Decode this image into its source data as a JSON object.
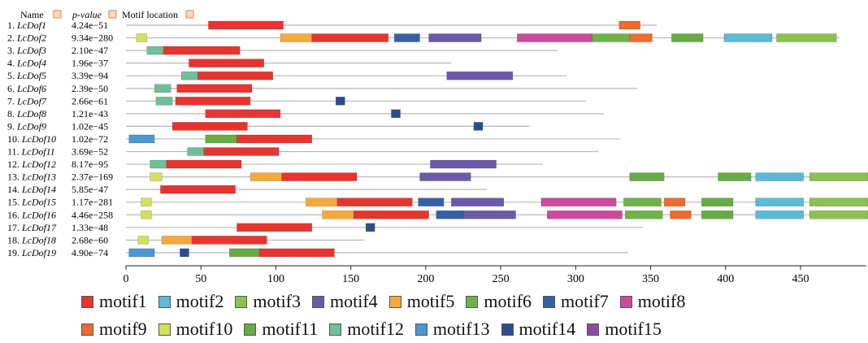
{
  "chart_data": {
    "type": "motif_map",
    "headers": {
      "name": "Name",
      "pvalue": "p-value",
      "location": "Motif location"
    },
    "xlim": [
      0,
      495
    ],
    "xticks": [
      0,
      50,
      100,
      150,
      200,
      250,
      300,
      350,
      400,
      450
    ],
    "motif_colors": {
      "motif1": "#e8342f",
      "motif2": "#5bbad6",
      "motif3": "#8cc152",
      "motif4": "#6a5aa8",
      "motif5": "#f3aa3a",
      "motif6": "#6fb24a",
      "motif7": "#3560a5",
      "motif8": "#cc4a9c",
      "motif9": "#ee6a2f",
      "motif10": "#d4df5c",
      "motif11": "#66ab43",
      "motif12": "#6fbf9a",
      "motif13": "#4a98cf",
      "motif14": "#2a4d8f",
      "motif15": "#8a4aa6"
    },
    "legend": [
      [
        "motif1",
        "motif2",
        "motif3",
        "motif4",
        "motif5",
        "motif6",
        "motif7",
        "motif8"
      ],
      [
        "motif9",
        "motif10",
        "motif11",
        "motif12",
        "motif13",
        "motif14",
        "motif15"
      ]
    ],
    "rows": [
      {
        "idx": "1.",
        "name": "LcDof1",
        "pvalue": "4.24e−51",
        "length": 354,
        "motifs": [
          [
            "motif1",
            55,
            105
          ],
          [
            "motif9",
            329,
            343
          ]
        ]
      },
      {
        "idx": "2.",
        "name": "LcDof2",
        "pvalue": "9.34e−280",
        "length": 476,
        "motifs": [
          [
            "motif10",
            7,
            14
          ],
          [
            "motif5",
            103,
            124
          ],
          [
            "motif1",
            124,
            175
          ],
          [
            "motif7",
            179,
            196
          ],
          [
            "motif4",
            202,
            237
          ],
          [
            "motif8",
            261,
            311
          ],
          [
            "motif6",
            311,
            336
          ],
          [
            "motif9",
            336,
            351
          ],
          [
            "motif11",
            364,
            385
          ],
          [
            "motif2",
            399,
            431
          ],
          [
            "motif3",
            434,
            474
          ]
        ]
      },
      {
        "idx": "3.",
        "name": "LcDof3",
        "pvalue": "2.10e−47",
        "length": 288,
        "motifs": [
          [
            "motif12",
            14,
            25
          ],
          [
            "motif1",
            25,
            76
          ]
        ]
      },
      {
        "idx": "4.",
        "name": "LcDof4",
        "pvalue": "1.96e−37",
        "length": 217,
        "motifs": [
          [
            "motif1",
            42,
            92
          ]
        ]
      },
      {
        "idx": "5.",
        "name": "LcDof5",
        "pvalue": "3.39e−94",
        "length": 294,
        "motifs": [
          [
            "motif12",
            37,
            48
          ],
          [
            "motif1",
            48,
            98
          ],
          [
            "motif4",
            214,
            258
          ]
        ]
      },
      {
        "idx": "6.",
        "name": "LcDof6",
        "pvalue": "2.39e−50",
        "length": 341,
        "motifs": [
          [
            "motif12",
            19,
            30
          ],
          [
            "motif1",
            34,
            84
          ]
        ]
      },
      {
        "idx": "7.",
        "name": "LcDof7",
        "pvalue": "2.66e−61",
        "length": 307,
        "motifs": [
          [
            "motif12",
            20,
            31
          ],
          [
            "motif1",
            33,
            83
          ],
          [
            "motif14",
            140,
            146
          ]
        ]
      },
      {
        "idx": "8.",
        "name": "LcDof8",
        "pvalue": "1.21e−43",
        "length": 319,
        "motifs": [
          [
            "motif1",
            53,
            103
          ],
          [
            "motif14",
            177,
            183
          ]
        ]
      },
      {
        "idx": "9.",
        "name": "LcDof9",
        "pvalue": "1.02e−45",
        "length": 269,
        "motifs": [
          [
            "motif1",
            31,
            81
          ],
          [
            "motif14",
            232,
            238
          ]
        ]
      },
      {
        "idx": "10.",
        "name": "LcDof10",
        "pvalue": "1.02e−72",
        "length": 330,
        "motifs": [
          [
            "motif13",
            2,
            19
          ],
          [
            "motif11",
            53,
            74
          ],
          [
            "motif1",
            74,
            124
          ]
        ]
      },
      {
        "idx": "11.",
        "name": "LcDof11",
        "pvalue": "3.69e−52",
        "length": 315,
        "motifs": [
          [
            "motif12",
            41,
            52
          ],
          [
            "motif1",
            52,
            102
          ]
        ]
      },
      {
        "idx": "12.",
        "name": "LcDof12",
        "pvalue": "8.17e−95",
        "length": 278,
        "motifs": [
          [
            "motif12",
            16,
            27
          ],
          [
            "motif1",
            27,
            77
          ],
          [
            "motif4",
            203,
            247
          ]
        ]
      },
      {
        "idx": "13.",
        "name": "LcDof13",
        "pvalue": "2.37e−169",
        "length": 495,
        "motifs": [
          [
            "motif10",
            16,
            24
          ],
          [
            "motif5",
            83,
            104
          ],
          [
            "motif1",
            104,
            154
          ],
          [
            "motif4",
            196,
            230
          ],
          [
            "motif11",
            336,
            359
          ],
          [
            "motif11",
            395,
            417
          ],
          [
            "motif2",
            420,
            452
          ],
          [
            "motif3",
            456,
            495
          ]
        ]
      },
      {
        "idx": "14.",
        "name": "LcDof14",
        "pvalue": "5.85e−47",
        "length": 241,
        "motifs": [
          [
            "motif1",
            23,
            73
          ]
        ]
      },
      {
        "idx": "15.",
        "name": "LcDof15",
        "pvalue": "1.17e−281",
        "length": 495,
        "motifs": [
          [
            "motif10",
            10,
            17
          ],
          [
            "motif5",
            120,
            141
          ],
          [
            "motif1",
            141,
            191
          ],
          [
            "motif7",
            195,
            212
          ],
          [
            "motif4",
            217,
            252
          ],
          [
            "motif8",
            277,
            327
          ],
          [
            "motif6",
            332,
            357
          ],
          [
            "motif9",
            359,
            373
          ],
          [
            "motif11",
            384,
            405
          ],
          [
            "motif2",
            420,
            452
          ],
          [
            "motif3",
            456,
            495
          ]
        ]
      },
      {
        "idx": "16.",
        "name": "LcDof16",
        "pvalue": "4.46e−258",
        "length": 495,
        "motifs": [
          [
            "motif10",
            10,
            17
          ],
          [
            "motif5",
            131,
            152
          ],
          [
            "motif1",
            152,
            202
          ],
          [
            "motif7",
            207,
            225
          ],
          [
            "motif4",
            225,
            260
          ],
          [
            "motif8",
            281,
            331
          ],
          [
            "motif6",
            333,
            358
          ],
          [
            "motif9",
            363,
            377
          ],
          [
            "motif11",
            384,
            405
          ],
          [
            "motif2",
            420,
            452
          ],
          [
            "motif3",
            456,
            495
          ]
        ]
      },
      {
        "idx": "17.",
        "name": "LcDof17",
        "pvalue": "1.33e−48",
        "length": 345,
        "motifs": [
          [
            "motif1",
            74,
            124
          ],
          [
            "motif14",
            160,
            166
          ]
        ]
      },
      {
        "idx": "18.",
        "name": "LcDof18",
        "pvalue": "2.68e−60",
        "length": 159,
        "motifs": [
          [
            "motif10",
            8,
            15
          ],
          [
            "motif5",
            24,
            44
          ],
          [
            "motif1",
            44,
            94
          ]
        ]
      },
      {
        "idx": "19.",
        "name": "LcDof19",
        "pvalue": "4.90e−74",
        "length": 335,
        "motifs": [
          [
            "motif13",
            2,
            19
          ],
          [
            "motif14",
            36,
            42
          ],
          [
            "motif11",
            69,
            89
          ],
          [
            "motif1",
            89,
            139
          ]
        ]
      }
    ]
  }
}
